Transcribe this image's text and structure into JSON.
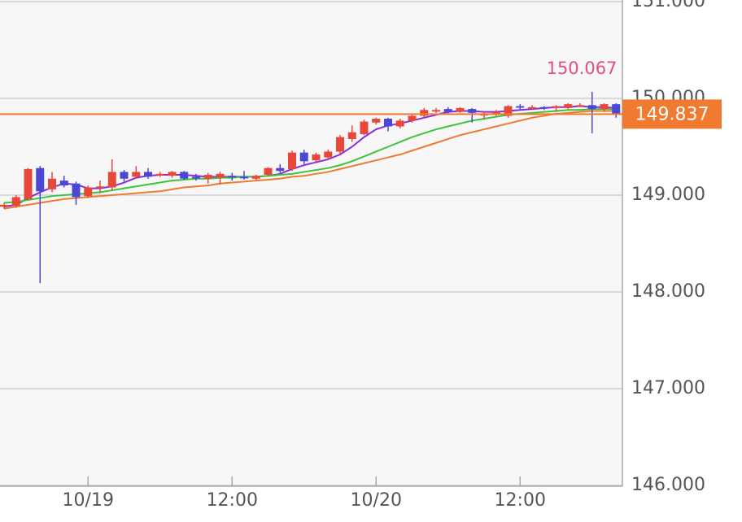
{
  "chart_data": {
    "type": "candlestick",
    "categories": [
      null,
      null,
      null,
      null,
      null,
      null,
      null,
      "10/19",
      null,
      null,
      null,
      null,
      null,
      null,
      null,
      null,
      null,
      null,
      null,
      "12:00",
      null,
      null,
      null,
      null,
      null,
      null,
      null,
      null,
      null,
      null,
      null,
      "10/20",
      null,
      null,
      null,
      null,
      null,
      null,
      null,
      null,
      null,
      null,
      null,
      "12:00",
      null,
      null,
      null,
      null,
      null,
      null,
      null,
      null
    ],
    "open": [
      148.88,
      148.89,
      148.96,
      149.28,
      149.06,
      149.15,
      149.12,
      148.99,
      149.08,
      149.08,
      149.24,
      149.19,
      149.24,
      149.21,
      149.2,
      149.24,
      149.19,
      149.17,
      149.18,
      149.2,
      149.19,
      149.17,
      149.21,
      149.28,
      149.27,
      149.44,
      149.36,
      149.39,
      149.45,
      149.58,
      149.63,
      149.75,
      149.79,
      149.71,
      149.77,
      149.82,
      149.87,
      149.89,
      149.86,
      149.89,
      149.84,
      149.85,
      149.82,
      149.92,
      149.91,
      149.91,
      149.92,
      149.9,
      149.93,
      149.93,
      149.89,
      149.94
    ],
    "high": [
      148.92,
      149.0,
      149.28,
      149.3,
      149.24,
      149.2,
      149.14,
      149.1,
      149.15,
      149.37,
      149.26,
      149.3,
      149.28,
      149.24,
      149.25,
      149.25,
      149.22,
      149.23,
      149.24,
      149.23,
      149.25,
      149.21,
      149.29,
      149.32,
      149.46,
      149.47,
      149.44,
      149.47,
      149.62,
      149.72,
      149.78,
      149.8,
      149.8,
      149.79,
      149.83,
      149.9,
      149.9,
      149.91,
      149.91,
      149.9,
      149.86,
      149.88,
      149.93,
      149.94,
      149.93,
      149.92,
      149.93,
      149.95,
      149.95,
      150.067,
      149.95,
      149.95
    ],
    "low": [
      148.86,
      148.87,
      148.95,
      148.09,
      149.03,
      149.08,
      148.9,
      148.97,
      149.02,
      149.05,
      149.14,
      149.17,
      149.17,
      149.19,
      149.18,
      149.16,
      149.15,
      149.12,
      149.11,
      149.15,
      149.16,
      149.16,
      149.2,
      149.23,
      149.25,
      149.32,
      149.34,
      149.37,
      149.41,
      149.55,
      149.62,
      149.73,
      149.66,
      149.69,
      149.75,
      149.8,
      149.85,
      149.84,
      149.85,
      149.75,
      149.78,
      149.82,
      149.8,
      149.88,
      149.89,
      149.88,
      149.86,
      149.89,
      149.91,
      149.64,
      149.86,
      149.8
    ],
    "close": [
      148.9,
      148.98,
      149.27,
      149.04,
      149.17,
      149.1,
      148.98,
      149.08,
      149.09,
      149.24,
      149.17,
      149.24,
      149.19,
      149.22,
      149.24,
      149.17,
      149.18,
      149.21,
      149.22,
      149.19,
      149.18,
      149.2,
      149.28,
      149.25,
      149.44,
      149.35,
      149.42,
      149.45,
      149.6,
      149.65,
      149.76,
      149.79,
      149.71,
      149.77,
      149.82,
      149.88,
      149.88,
      149.86,
      149.9,
      149.85,
      149.84,
      149.86,
      149.92,
      149.91,
      149.91,
      149.9,
      149.92,
      149.94,
      149.93,
      149.89,
      149.94,
      149.837
    ],
    "up_color": "#e8483a",
    "down_color": "#4a47d4",
    "lines": [
      {
        "color": "#8a2be2",
        "values": [
          148.88,
          148.9,
          148.97,
          149.03,
          149.08,
          149.12,
          149.11,
          149.07,
          149.07,
          149.09,
          149.13,
          149.18,
          149.2,
          149.21,
          149.21,
          149.21,
          149.2,
          149.19,
          149.19,
          149.19,
          149.19,
          149.19,
          149.2,
          149.22,
          149.27,
          149.31,
          149.34,
          149.37,
          149.42,
          149.5,
          149.6,
          149.68,
          149.72,
          149.74,
          149.77,
          149.8,
          149.83,
          149.86,
          149.87,
          149.87,
          149.86,
          149.86,
          149.87,
          149.88,
          149.89,
          149.9,
          149.91,
          149.91,
          149.92,
          149.91,
          149.91,
          149.9
        ]
      },
      {
        "color": "#3cc43c",
        "values": [
          148.92,
          148.93,
          148.95,
          148.97,
          148.99,
          149.0,
          149.01,
          149.02,
          149.03,
          149.05,
          149.07,
          149.09,
          149.11,
          149.13,
          149.15,
          149.16,
          149.17,
          149.17,
          149.18,
          149.18,
          149.19,
          149.19,
          149.2,
          149.21,
          149.22,
          149.24,
          149.26,
          149.28,
          149.31,
          149.35,
          149.4,
          149.45,
          149.5,
          149.55,
          149.6,
          149.64,
          149.68,
          149.71,
          149.74,
          149.77,
          149.79,
          149.81,
          149.83,
          149.84,
          149.85,
          149.86,
          149.87,
          149.88,
          149.88,
          149.89,
          149.89,
          149.89
        ]
      },
      {
        "color": "#f07a30",
        "values": [
          148.86,
          148.88,
          148.9,
          148.92,
          148.94,
          148.96,
          148.97,
          148.98,
          148.99,
          149.0,
          149.01,
          149.02,
          149.03,
          149.04,
          149.06,
          149.08,
          149.09,
          149.1,
          149.12,
          149.13,
          149.14,
          149.15,
          149.16,
          149.17,
          149.19,
          149.2,
          149.22,
          149.24,
          149.27,
          149.3,
          149.33,
          149.36,
          149.39,
          149.42,
          149.46,
          149.5,
          149.54,
          149.58,
          149.62,
          149.65,
          149.68,
          149.71,
          149.74,
          149.77,
          149.8,
          149.82,
          149.84,
          149.85,
          149.86,
          149.87,
          149.87,
          149.87
        ]
      }
    ],
    "current_price": 149.837,
    "current_color": "#f07a30",
    "max_marker": 150.067,
    "max_color": "#e0507a",
    "ylim": [
      146,
      151
    ],
    "yticks": [
      {
        "value": 146,
        "label": "146.000"
      },
      {
        "value": 147,
        "label": "147.000"
      },
      {
        "value": 148,
        "label": "148.000"
      },
      {
        "value": 149,
        "label": "149.000"
      },
      {
        "value": 150,
        "label": "150.000"
      },
      {
        "value": 151,
        "label": "151.000"
      }
    ],
    "grid": true
  }
}
